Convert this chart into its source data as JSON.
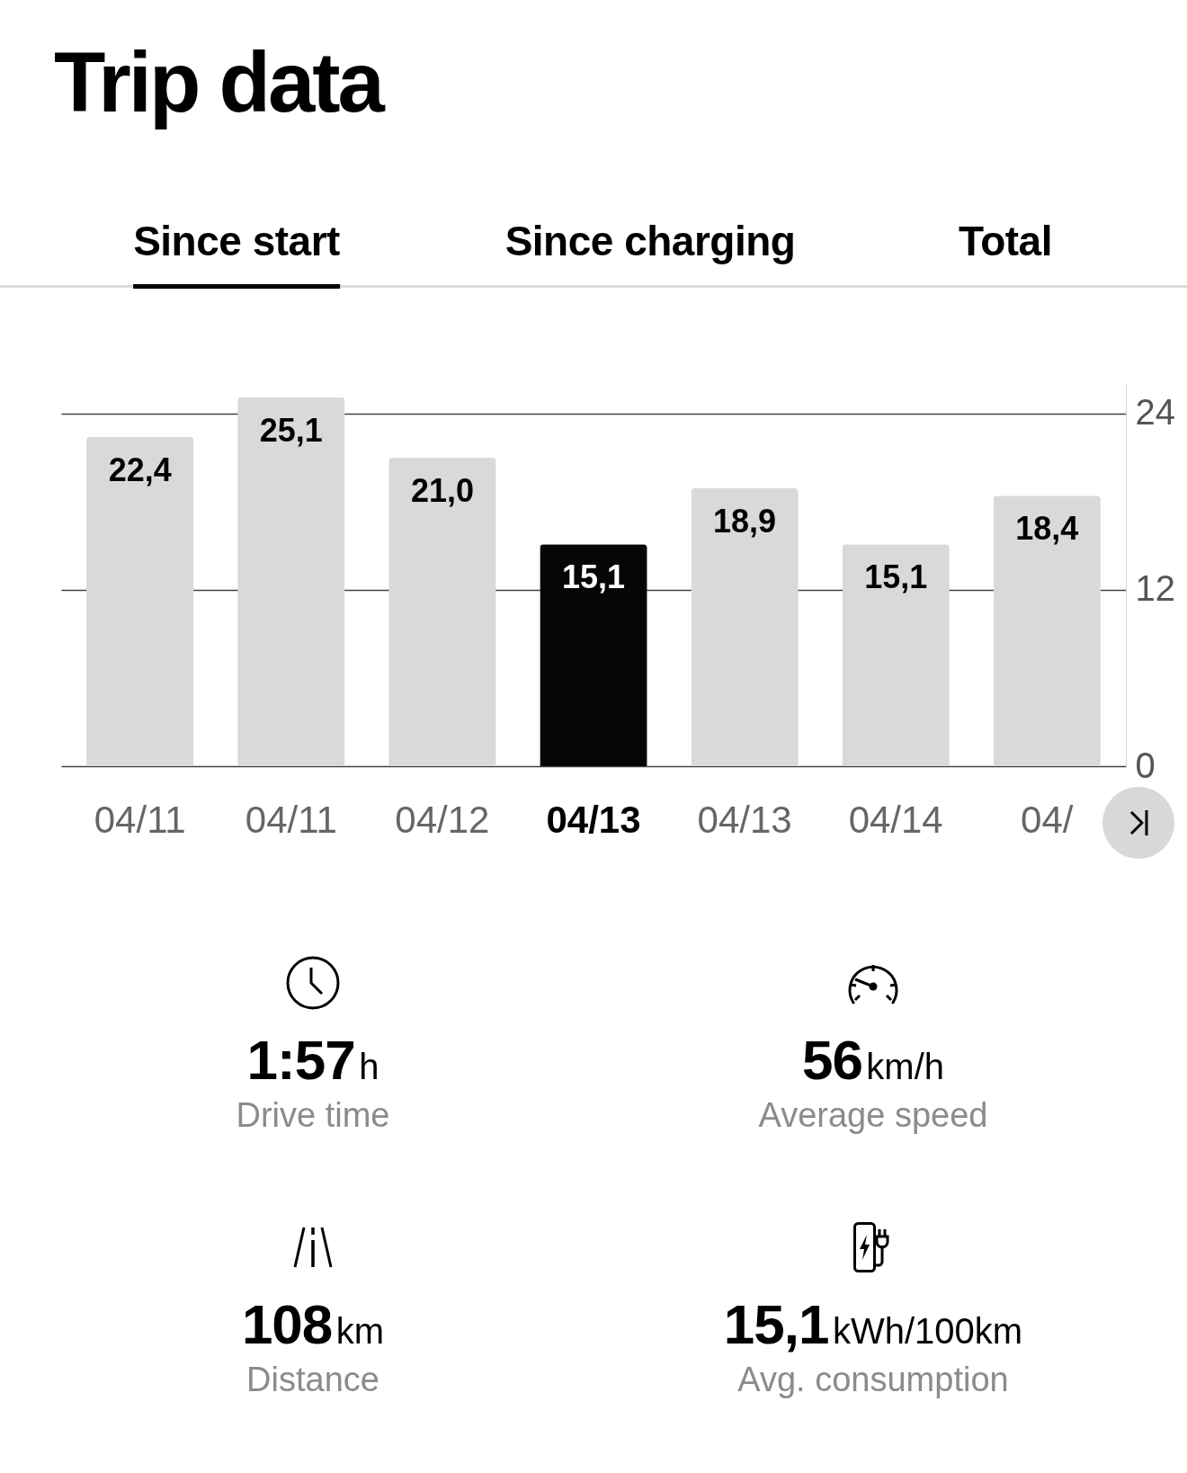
{
  "chart_data": [
    {
      "type": "bar",
      "title": "Trip data",
      "annotations": [
        "Since start",
        "Since charging",
        "Total"
      ],
      "categories": [
        "04/11",
        "04/11",
        "04/12",
        "04/13",
        "04/13",
        "04/14",
        "04/"
      ],
      "values": [
        22.4,
        25.1,
        21.0,
        15.1,
        18.9,
        15.1,
        18.4
      ],
      "colors": [
        "#d9d9d9",
        "#d9d9d9",
        "#d9d9d9",
        "#050608",
        "#d9d9d9",
        "#d9d9d9",
        "#d9d9d9"
      ],
      "value_labels": [
        "22,4",
        "25,1",
        "21,0",
        "15,1",
        "18,9",
        "15,1",
        "18,4"
      ],
      "ylim": [
        0,
        26
      ],
      "yticks": [
        0,
        12,
        24
      ],
      "grid": "y"
    },
    {
      "type": "other",
      "annotations": [
        "1:57",
        "h",
        "Drive time",
        "56",
        "km/h",
        "Average speed",
        "108",
        "km",
        "Distance",
        "15,1",
        "kWh/100km",
        "Avg. consumption"
      ]
    }
  ]
}
